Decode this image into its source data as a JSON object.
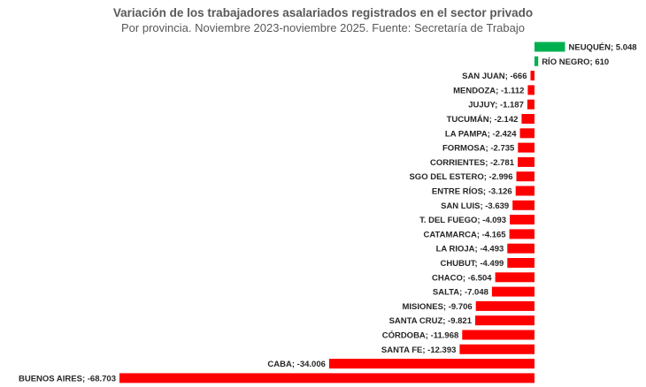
{
  "chart_data": {
    "type": "bar",
    "orientation": "horizontal",
    "title": "Variación de los trabajadores asalariados registrados en el sector privado",
    "subtitle": "Por provincia. Noviembre 2023-noviembre 2025. Fuente: Secretaría de Trabajo",
    "categories": [
      "NEUQUÉN",
      "RÍO NEGRO",
      "SAN JUAN",
      "MENDOZA",
      "JUJUY",
      "TUCUMÁN",
      "LA PAMPA",
      "FORMOSA",
      "CORRIENTES",
      "SGO DEL ESTERO",
      "ENTRE RÍOS",
      "SAN LUIS",
      "T. DEL FUEGO",
      "CATAMARCA",
      "LA RIOJA",
      "CHUBUT",
      "CHACO",
      "SALTA",
      "MISIONES",
      "SANTA CRUZ",
      "CÓRDOBA",
      "SANTA FE",
      "CABA",
      "BUENOS AIRES"
    ],
    "values": [
      5048,
      610,
      -666,
      -1112,
      -1187,
      -2142,
      -2424,
      -2735,
      -2781,
      -2996,
      -3126,
      -3639,
      -4093,
      -4165,
      -4493,
      -4499,
      -6504,
      -7048,
      -9706,
      -9821,
      -11968,
      -12393,
      -34006,
      -68703
    ],
    "labels": [
      "NEUQUÉN;  5.048",
      "RÍO NEGRO;  610",
      "SAN JUAN; -666",
      "MENDOZA; -1.112",
      "JUJUY; -1.187",
      "TUCUMÁN; -2.142",
      "LA PAMPA; -2.424",
      "FORMOSA; -2.735",
      "CORRIENTES; -2.781",
      "SGO DEL ESTERO; -2.996",
      "ENTRE RÍOS; -3.126",
      "SAN LUIS; -3.639",
      "T. DEL FUEGO; -4.093",
      "CATAMARCA; -4.165",
      "LA RIOJA; -4.493",
      "CHUBUT; -4.499",
      "CHACO; -6.504",
      "SALTA; -7.048",
      "MISIONES; -9.706",
      "SANTA CRUZ; -9.821",
      "CÓRDOBA; -11.968",
      "SANTA FE; -12.393",
      "CABA; -34.006",
      "BUENOS AIRES; -68.703"
    ],
    "colors": {
      "positive": "#00b050",
      "negative": "#ff0000"
    },
    "grid": false,
    "legend": "none"
  }
}
